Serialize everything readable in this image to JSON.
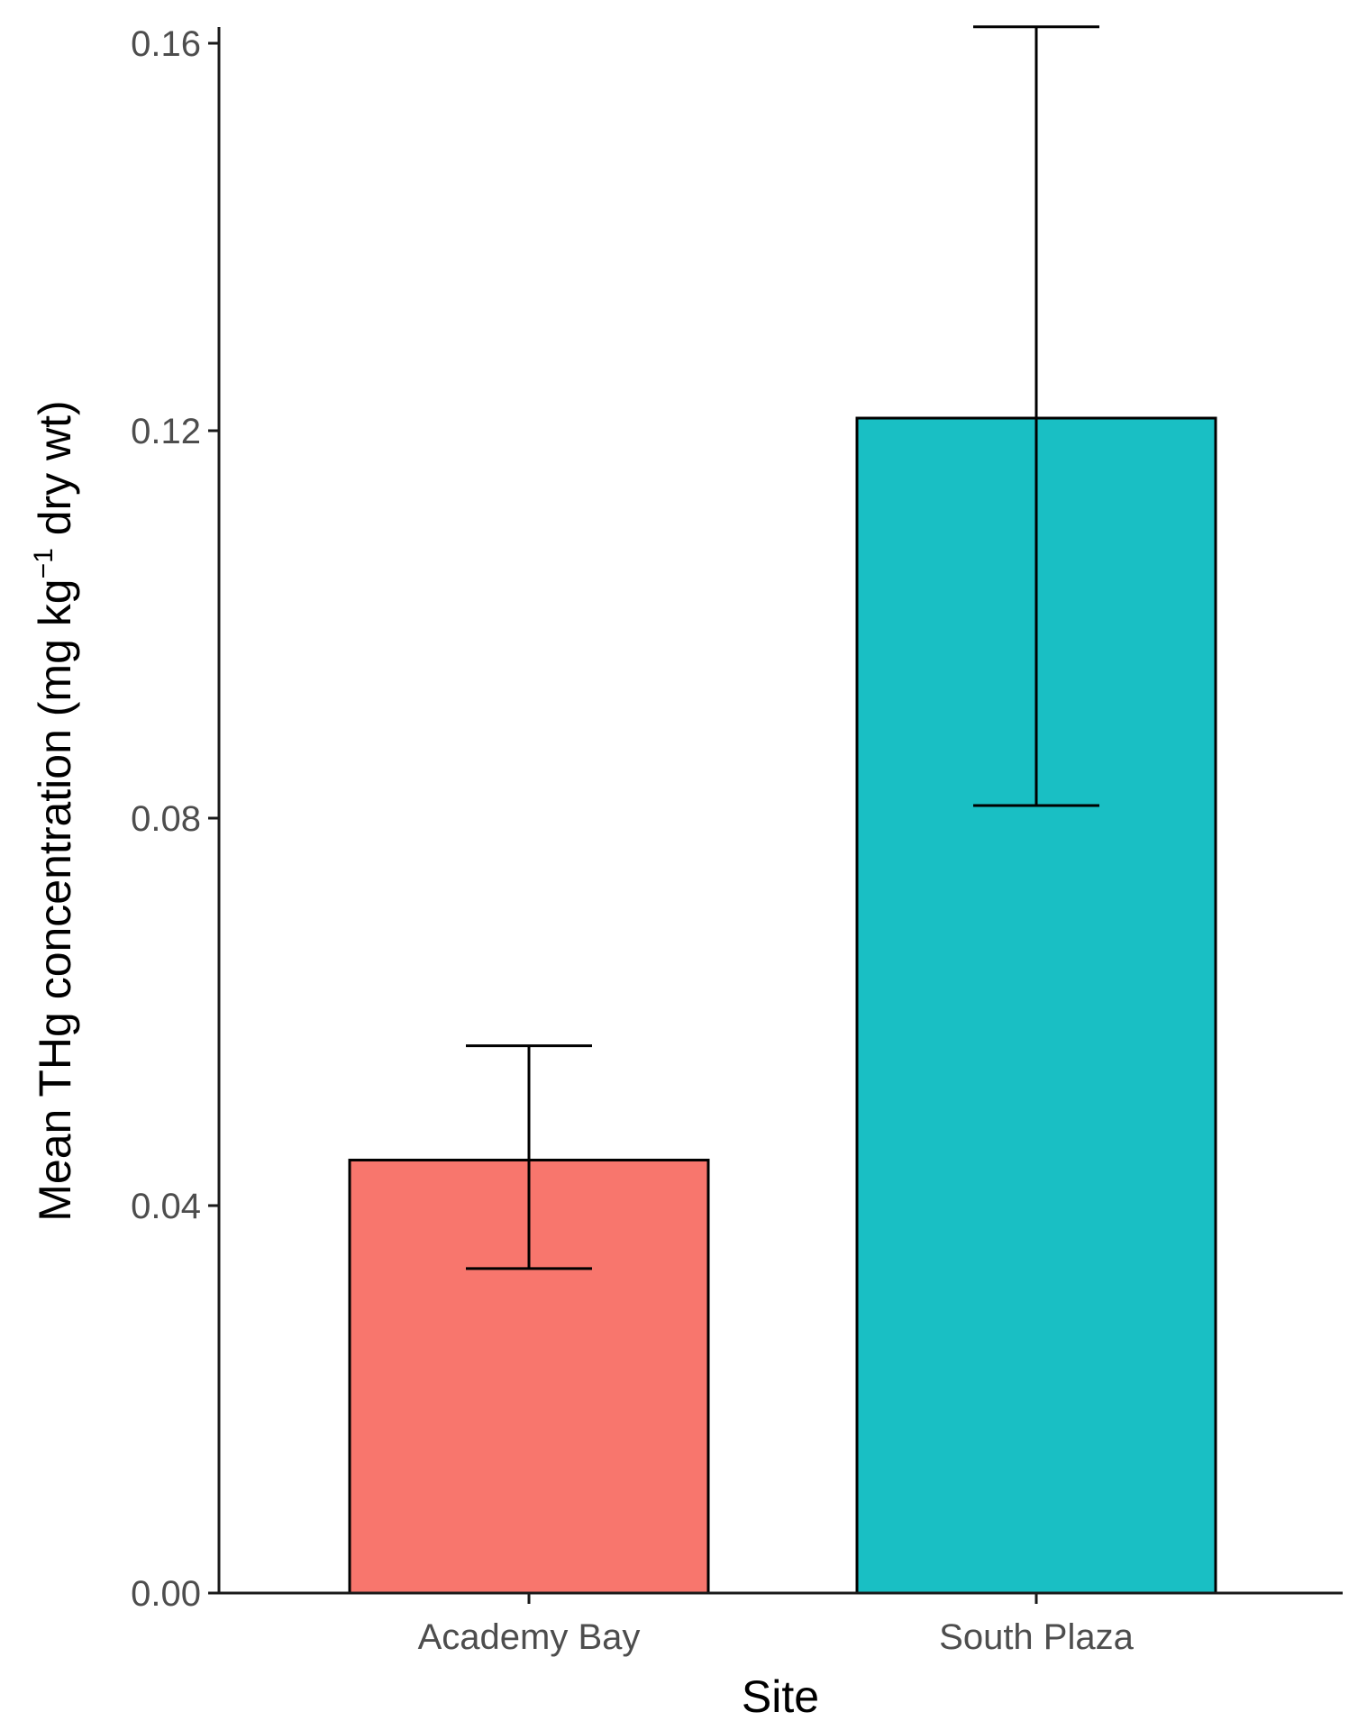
{
  "chart_data": {
    "type": "bar",
    "categories": [
      "Academy Bay",
      "South Plaza"
    ],
    "values": [
      0.0447,
      0.1213
    ],
    "error_bars": [
      {
        "low": 0.0335,
        "high": 0.0565
      },
      {
        "low": 0.0813,
        "high": 0.1617
      }
    ],
    "colors": [
      "#f8766d",
      "#19bfc4"
    ],
    "xlabel": "Site",
    "ylabel": {
      "prefix": "Mean THg concentration (mg kg",
      "superscript": "−1",
      "suffix": " dry wt)"
    },
    "ylim": [
      0,
      0.16
    ],
    "yticks": [
      0.0,
      0.04,
      0.08,
      0.12,
      0.16
    ],
    "ytick_labels": [
      "0.00",
      "0.04",
      "0.08",
      "0.12",
      "0.16"
    ],
    "grid": false,
    "legend": "none"
  }
}
